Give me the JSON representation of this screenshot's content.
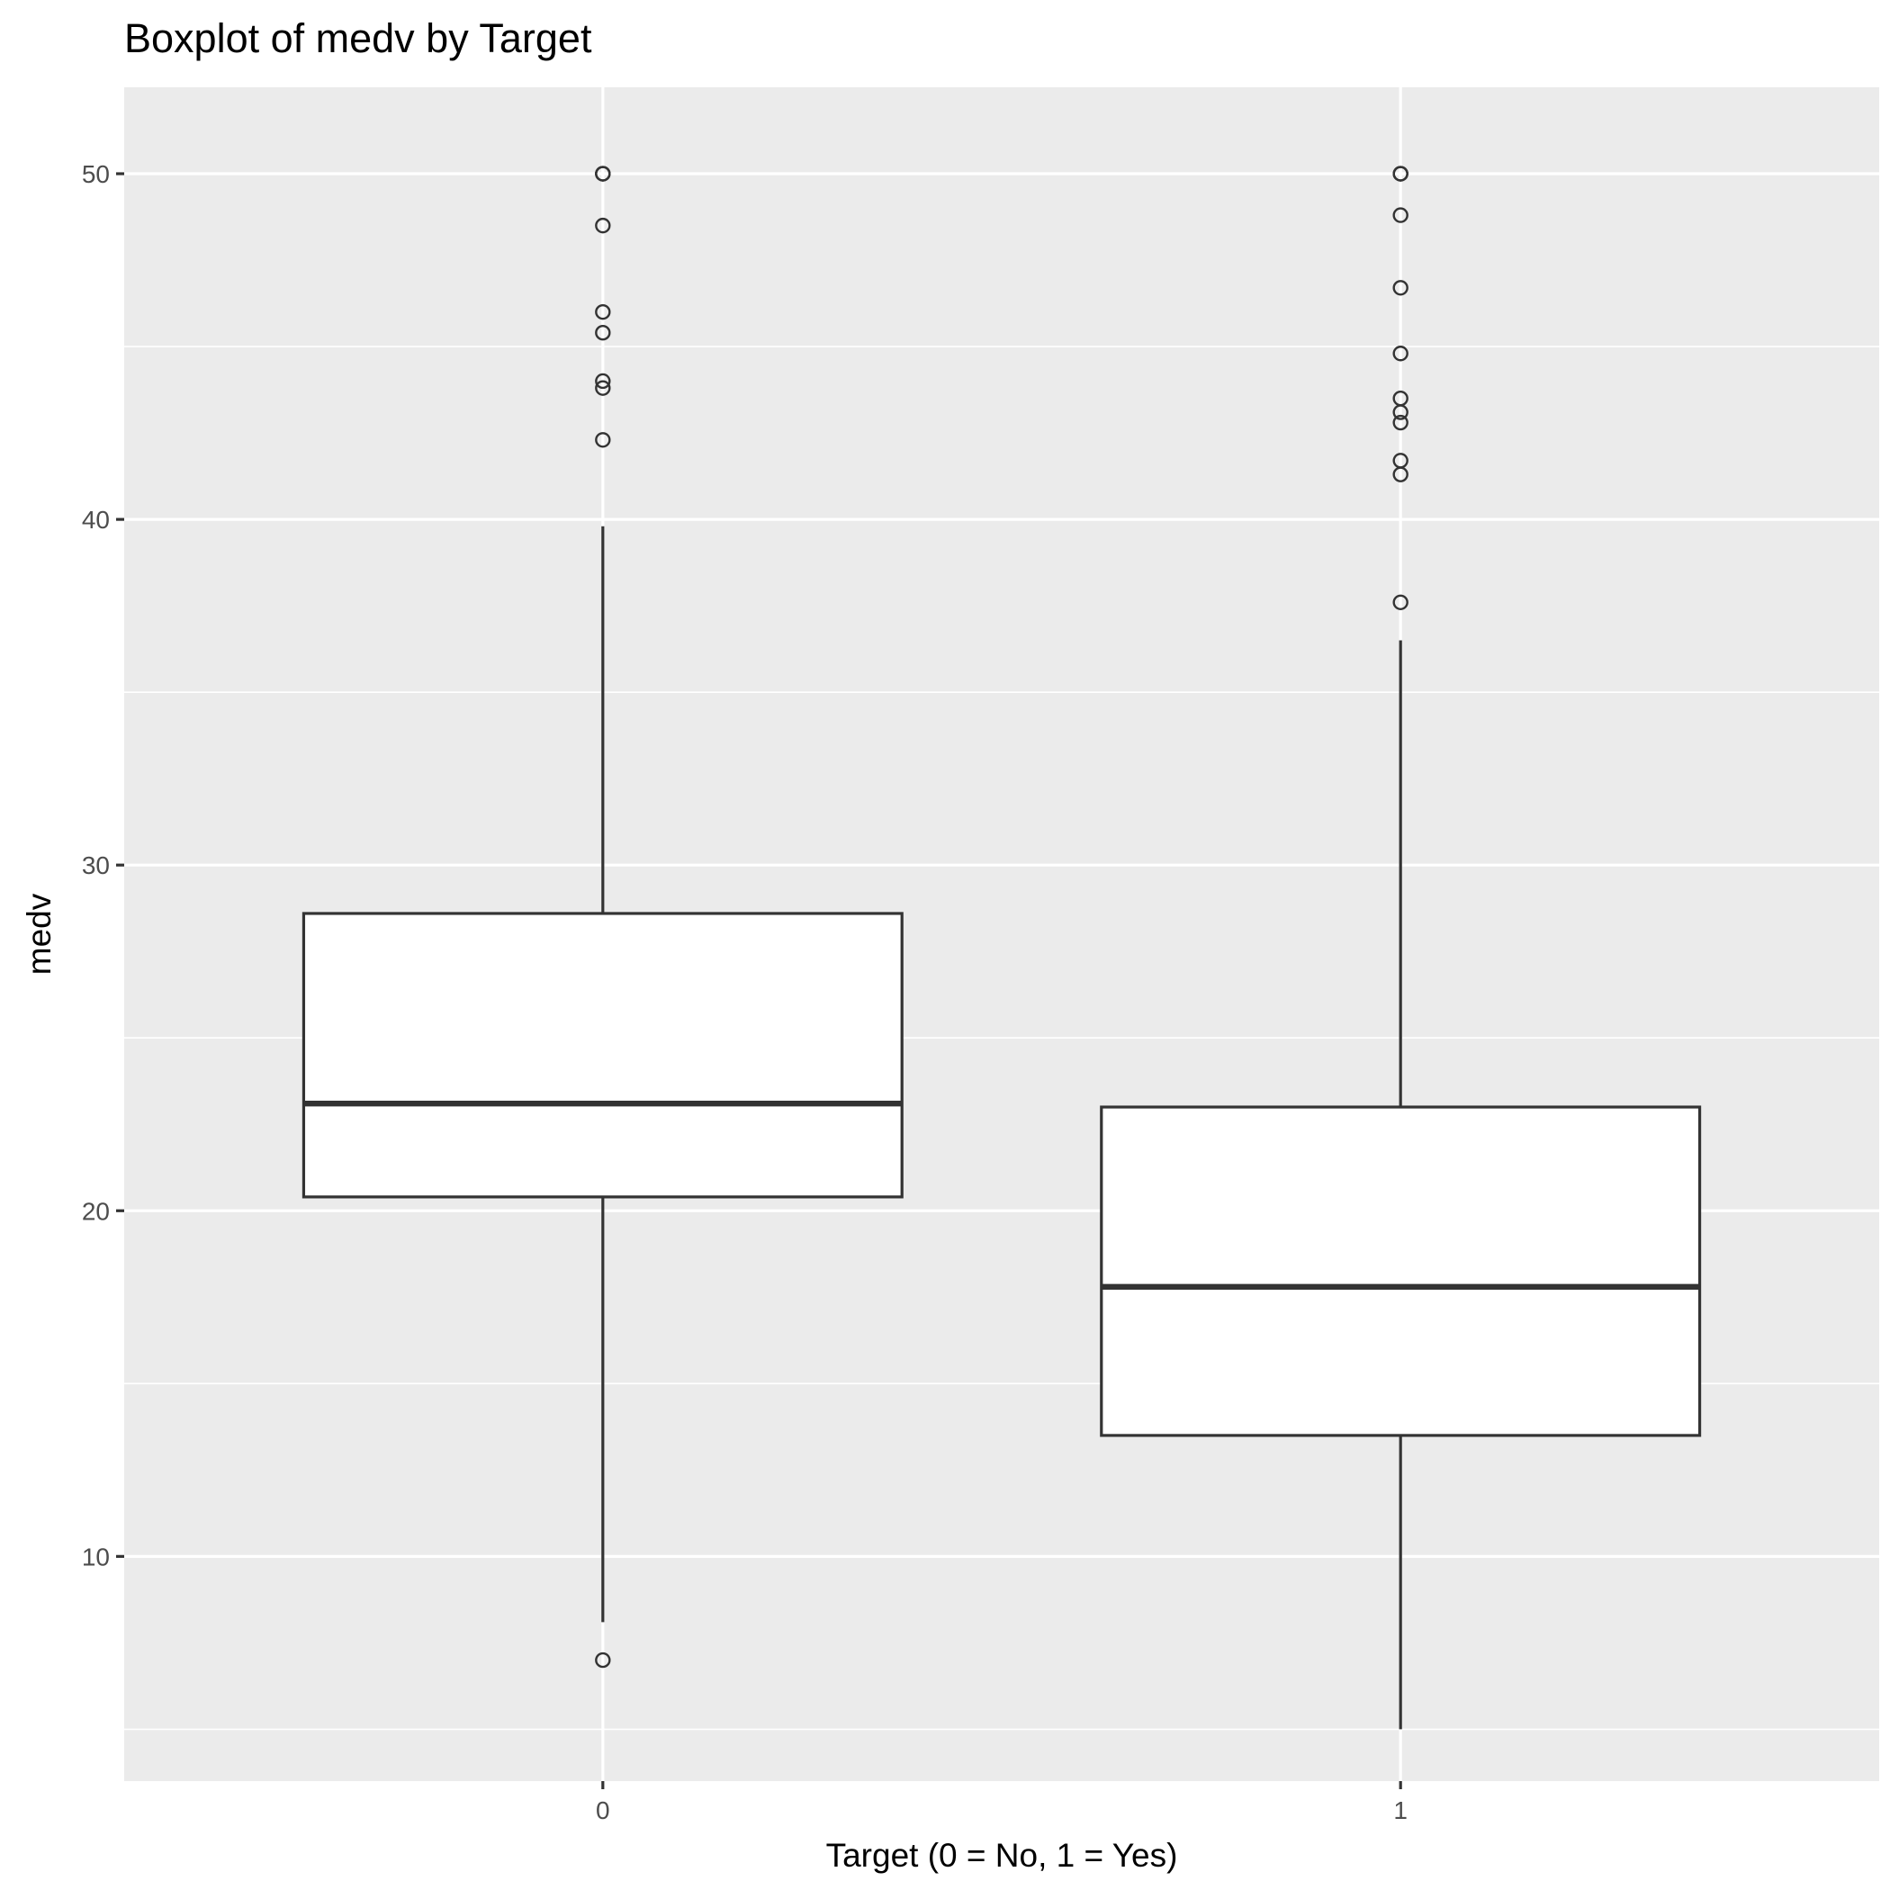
{
  "chart_data": {
    "type": "boxplot",
    "title": "Boxplot of medv by Target",
    "xlabel": "Target (0 = No, 1 = Yes)",
    "ylabel": "medv",
    "categories": [
      "0",
      "1"
    ],
    "ylim": [
      3.5,
      52.5
    ],
    "yticks": [
      10,
      20,
      30,
      40,
      50
    ],
    "grid": true,
    "boxes": [
      {
        "category": "0",
        "whisker_low": 8.1,
        "q1": 20.4,
        "median": 23.1,
        "q3": 28.6,
        "whisker_high": 39.8,
        "outliers": [
          50.0,
          50.0,
          50.0,
          48.5,
          46.0,
          45.4,
          44.0,
          43.8,
          42.3,
          7.0
        ]
      },
      {
        "category": "1",
        "whisker_low": 5.0,
        "q1": 13.5,
        "median": 17.8,
        "q3": 23.0,
        "whisker_high": 36.5,
        "outliers": [
          50.0,
          50.0,
          50.0,
          48.8,
          46.7,
          44.8,
          43.5,
          43.1,
          42.8,
          41.7,
          41.3,
          37.6
        ]
      }
    ]
  }
}
